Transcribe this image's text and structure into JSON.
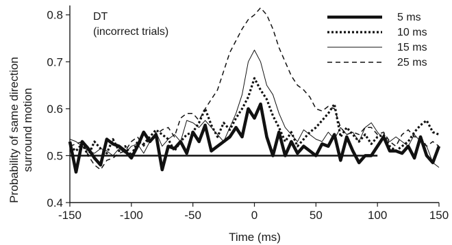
{
  "chart_data": {
    "type": "line",
    "annotation": [
      "DT",
      "(incorrect trials)"
    ],
    "xlabel": "Time (ms)",
    "ylabel": [
      "Probability of same direction",
      "surround motion"
    ],
    "xlim": [
      -150,
      150
    ],
    "ylim": [
      0.4,
      0.82
    ],
    "xticks": [
      -150,
      -100,
      -50,
      0,
      50,
      100,
      150
    ],
    "xtick_labels": [
      "-150",
      "-100",
      "-50",
      "0",
      "50",
      "100",
      "150"
    ],
    "yticks": [
      0.4,
      0.5,
      0.6,
      0.7,
      0.8
    ],
    "ytick_labels": [
      "0.4",
      "0.5",
      "0.6",
      "0.7",
      "0.8"
    ],
    "grid": false,
    "legend_position": "top-right",
    "reference_line": {
      "y": 0.5,
      "x_from": -150,
      "x_to": 100
    },
    "x": [
      -150,
      -145,
      -140,
      -135,
      -130,
      -125,
      -120,
      -115,
      -110,
      -105,
      -100,
      -95,
      -90,
      -85,
      -80,
      -75,
      -70,
      -65,
      -60,
      -55,
      -50,
      -45,
      -40,
      -35,
      -30,
      -25,
      -20,
      -15,
      -10,
      -5,
      0,
      5,
      10,
      15,
      20,
      25,
      30,
      35,
      40,
      45,
      50,
      55,
      60,
      65,
      70,
      75,
      80,
      85,
      90,
      95,
      100,
      105,
      110,
      115,
      120,
      125,
      130,
      135,
      140,
      145,
      150
    ],
    "series": [
      {
        "name": "5 ms",
        "style": "thick-solid",
        "values": [
          0.53,
          0.465,
          0.53,
          0.515,
          0.495,
          0.48,
          0.535,
          0.525,
          0.52,
          0.51,
          0.495,
          0.52,
          0.55,
          0.53,
          0.545,
          0.47,
          0.52,
          0.515,
          0.53,
          0.505,
          0.55,
          0.53,
          0.565,
          0.51,
          0.52,
          0.53,
          0.54,
          0.56,
          0.54,
          0.6,
          0.58,
          0.61,
          0.54,
          0.5,
          0.55,
          0.5,
          0.53,
          0.505,
          0.52,
          0.51,
          0.5,
          0.525,
          0.52,
          0.545,
          0.49,
          0.54,
          0.51,
          0.485,
          0.5,
          0.5,
          0.52,
          0.54,
          0.51,
          0.51,
          0.505,
          0.52,
          0.495,
          0.54,
          0.5,
          0.485,
          0.52
        ]
      },
      {
        "name": "10 ms",
        "style": "thick-dotted",
        "values": [
          0.52,
          0.51,
          0.525,
          0.5,
          0.53,
          0.515,
          0.505,
          0.535,
          0.51,
          0.52,
          0.5,
          0.53,
          0.525,
          0.54,
          0.555,
          0.545,
          0.535,
          0.51,
          0.53,
          0.545,
          0.55,
          0.57,
          0.6,
          0.565,
          0.54,
          0.57,
          0.555,
          0.58,
          0.6,
          0.625,
          0.665,
          0.64,
          0.62,
          0.585,
          0.56,
          0.53,
          0.55,
          0.52,
          0.535,
          0.55,
          0.56,
          0.575,
          0.59,
          0.61,
          0.54,
          0.56,
          0.545,
          0.53,
          0.545,
          0.525,
          0.54,
          0.545,
          0.52,
          0.51,
          0.52,
          0.53,
          0.55,
          0.565,
          0.575,
          0.55,
          0.545
        ]
      },
      {
        "name": "15 ms",
        "style": "thin-solid",
        "values": [
          0.535,
          0.53,
          0.52,
          0.51,
          0.505,
          0.515,
          0.51,
          0.5,
          0.515,
          0.505,
          0.52,
          0.525,
          0.505,
          0.53,
          0.55,
          0.52,
          0.535,
          0.545,
          0.53,
          0.575,
          0.57,
          0.56,
          0.575,
          0.56,
          0.545,
          0.53,
          0.56,
          0.59,
          0.63,
          0.7,
          0.725,
          0.7,
          0.65,
          0.63,
          0.59,
          0.56,
          0.545,
          0.53,
          0.555,
          0.545,
          0.535,
          0.53,
          0.55,
          0.535,
          0.56,
          0.545,
          0.55,
          0.53,
          0.56,
          0.57,
          0.55,
          0.535,
          0.53,
          0.54,
          0.53,
          0.52,
          0.545,
          0.53,
          0.52,
          0.485,
          0.475
        ]
      },
      {
        "name": "25 ms",
        "style": "dashed",
        "values": [
          0.52,
          0.525,
          0.53,
          0.5,
          0.48,
          0.47,
          0.49,
          0.495,
          0.505,
          0.51,
          0.53,
          0.54,
          0.52,
          0.535,
          0.545,
          0.555,
          0.56,
          0.54,
          0.58,
          0.59,
          0.59,
          0.575,
          0.6,
          0.62,
          0.64,
          0.68,
          0.72,
          0.745,
          0.77,
          0.79,
          0.8,
          0.815,
          0.8,
          0.77,
          0.73,
          0.7,
          0.67,
          0.65,
          0.64,
          0.625,
          0.6,
          0.595,
          0.605,
          0.6,
          0.56,
          0.545,
          0.55,
          0.545,
          0.56,
          0.56,
          0.545,
          0.55,
          0.53,
          0.52,
          0.545,
          0.555,
          0.54,
          0.54,
          0.52,
          0.53,
          0.52
        ]
      }
    ]
  }
}
